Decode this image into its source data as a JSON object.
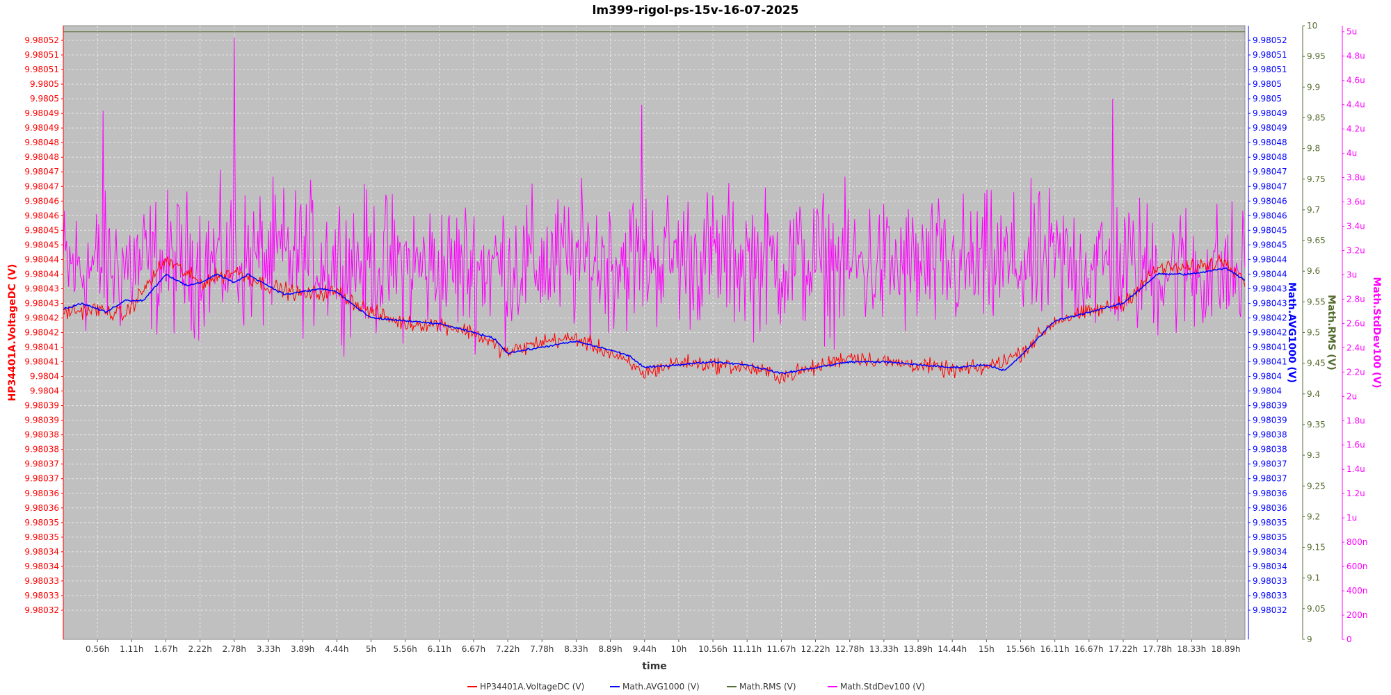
{
  "chart_data": {
    "type": "line",
    "title": "lm399-rigol-ps-15v-16-07-2025",
    "xlabel": "time",
    "x_range_hours": [
      0,
      19.2
    ],
    "x_tick_labels": [
      "0.56h",
      "1.11h",
      "1.67h",
      "2.22h",
      "2.78h",
      "3.33h",
      "3.89h",
      "4.44h",
      "5h",
      "5.56h",
      "6.11h",
      "6.67h",
      "7.22h",
      "7.78h",
      "8.33h",
      "8.89h",
      "9.44h",
      "10h",
      "10.56h",
      "11.11h",
      "11.67h",
      "12.22h",
      "12.78h",
      "13.33h",
      "13.89h",
      "14.44h",
      "15h",
      "15.56h",
      "16.11h",
      "16.67h",
      "17.22h",
      "17.78h",
      "18.33h",
      "18.89h"
    ],
    "grid": true,
    "legend_position": "bottom",
    "axes": {
      "left": {
        "label": "HP34401A.VoltageDC (V)",
        "color": "#ff0000",
        "range": [
          9.980315,
          9.980525
        ],
        "tick_labels": [
          "9.98052",
          "9.98051",
          "9.98051",
          "9.9805",
          "9.9805",
          "9.98049",
          "9.98049",
          "9.98048",
          "9.98048",
          "9.98047",
          "9.98047",
          "9.98046",
          "9.98046",
          "9.98045",
          "9.98045",
          "9.98044",
          "9.98044",
          "9.98043",
          "9.98043",
          "9.98042",
          "9.98042",
          "9.98041",
          "9.98041",
          "9.9804",
          "9.9804",
          "9.98039",
          "9.98039",
          "9.98038",
          "9.98038",
          "9.98037",
          "9.98037",
          "9.98036",
          "9.98036",
          "9.98035",
          "9.98035",
          "9.98034",
          "9.98034",
          "9.98033",
          "9.98033",
          "9.98032"
        ]
      },
      "right1": {
        "label": "Math.AVG1000 (V)",
        "color": "#0000ff",
        "range": [
          9.980315,
          9.980525
        ],
        "tick_labels": [
          "9.98052",
          "9.98051",
          "9.98051",
          "9.9805",
          "9.9805",
          "9.98049",
          "9.98049",
          "9.98048",
          "9.98048",
          "9.98047",
          "9.98047",
          "9.98046",
          "9.98046",
          "9.98045",
          "9.98045",
          "9.98044",
          "9.98044",
          "9.98043",
          "9.98043",
          "9.98042",
          "9.98042",
          "9.98041",
          "9.98041",
          "9.9804",
          "9.9804",
          "9.98039",
          "9.98039",
          "9.98038",
          "9.98038",
          "9.98037",
          "9.98037",
          "9.98036",
          "9.98036",
          "9.98035",
          "9.98035",
          "9.98034",
          "9.98034",
          "9.98033",
          "9.98033",
          "9.98032"
        ]
      },
      "right2": {
        "label": "Math.RMS (V)",
        "color": "#556b2f",
        "range": [
          9,
          10
        ],
        "tick_labels": [
          "10",
          "9.95",
          "9.9",
          "9.85",
          "9.8",
          "9.75",
          "9.7",
          "9.65",
          "9.6",
          "9.55",
          "9.5",
          "9.45",
          "9.4",
          "9.35",
          "9.3",
          "9.25",
          "9.2",
          "9.15",
          "9.1",
          "9.05",
          "9"
        ]
      },
      "right3": {
        "label": "Math.StdDev100 (V)",
        "color": "#ff00ff",
        "range": [
          0,
          5.05e-06
        ],
        "tick_labels": [
          "5u",
          "4.8u",
          "4.6u",
          "4.4u",
          "4.2u",
          "4u",
          "3.8u",
          "3.6u",
          "3.4u",
          "3.2u",
          "3u",
          "2.8u",
          "2.6u",
          "2.4u",
          "2.2u",
          "2u",
          "1.8u",
          "1.6u",
          "1.4u",
          "1.2u",
          "1u",
          "800n",
          "600n",
          "400n",
          "200n",
          "0"
        ]
      }
    },
    "series": [
      {
        "name": "HP34401A.VoltageDC (V)",
        "axis": "left",
        "color": "#ff0000",
        "x": [
          0,
          0.5,
          1,
          1.67,
          2.22,
          2.78,
          3.33,
          3.89,
          4.44,
          5,
          5.56,
          6.11,
          6.67,
          7.22,
          7.78,
          8.33,
          8.89,
          9.44,
          10,
          10.56,
          11.11,
          11.67,
          12.22,
          12.78,
          13.33,
          13.89,
          14.44,
          15,
          15.56,
          16.11,
          16.67,
          17.22,
          17.78,
          18.33,
          18.89,
          19.2
        ],
        "y": [
          9.980427,
          9.980428,
          9.980426,
          9.980445,
          9.980437,
          9.980441,
          9.980436,
          9.980433,
          9.980434,
          9.980427,
          9.980423,
          9.980423,
          9.98042,
          9.980413,
          9.980417,
          9.980418,
          9.980413,
          9.980406,
          9.98041,
          9.980409,
          9.980408,
          9.980405,
          9.980408,
          9.980412,
          9.98041,
          9.980409,
          9.980407,
          9.980408,
          9.980413,
          9.980424,
          9.980427,
          9.98043,
          9.980442,
          9.980442,
          9.980445,
          9.980438
        ],
        "noise": 4e-06
      },
      {
        "name": "Math.AVG1000 (V)",
        "axis": "right1",
        "color": "#0000ff",
        "x": [
          0,
          0.3,
          0.7,
          1.0,
          1.3,
          1.67,
          2.0,
          2.22,
          2.5,
          2.78,
          3.0,
          3.33,
          3.6,
          3.89,
          4.2,
          4.44,
          4.8,
          5.0,
          5.56,
          6.11,
          6.67,
          7.0,
          7.22,
          7.78,
          8.33,
          8.89,
          9.2,
          9.44,
          10,
          10.56,
          11.11,
          11.67,
          12.22,
          12.78,
          13.33,
          13.89,
          14.44,
          15,
          15.3,
          15.56,
          16.11,
          16.67,
          17.22,
          17.78,
          18.33,
          18.89,
          19.2
        ],
        "y": [
          9.980428,
          9.98043,
          9.980427,
          9.980431,
          9.980431,
          9.98044,
          9.980436,
          9.980437,
          9.98044,
          9.980437,
          9.98044,
          9.980436,
          9.980433,
          9.980434,
          9.980435,
          9.980434,
          9.980428,
          9.980425,
          9.980424,
          9.980423,
          9.98042,
          9.980418,
          9.980413,
          9.980415,
          9.980417,
          9.980414,
          9.980412,
          9.980408,
          9.980409,
          9.98041,
          9.980409,
          9.980406,
          9.980408,
          9.98041,
          9.98041,
          9.980409,
          9.980408,
          9.980409,
          9.980407,
          9.980412,
          9.980424,
          9.980427,
          9.98043,
          9.98044,
          9.98044,
          9.980442,
          9.980438
        ],
        "noise": 5e-07
      },
      {
        "name": "Math.RMS (V)",
        "axis": "right2",
        "color": "#556b2f",
        "x": [
          0,
          19.2
        ],
        "y": [
          9.99,
          9.99
        ],
        "noise": 0
      },
      {
        "name": "Math.StdDev100 (V)",
        "axis": "right3",
        "color": "#ff00ff",
        "x": [
          0,
          2,
          4,
          6,
          8,
          10,
          12,
          14,
          16,
          18,
          19.2
        ],
        "y": [
          3.05e-06,
          3.1e-06,
          3.15e-06,
          3.05e-06,
          3.1e-06,
          3.15e-06,
          3.1e-06,
          3.05e-06,
          3.1e-06,
          3.05e-06,
          3e-06
        ],
        "noise": 4.2e-07,
        "spikes": [
          {
            "x": 2.78,
            "y": 4.95e-06
          },
          {
            "x": 0.65,
            "y": 4.35e-06
          },
          {
            "x": 9.4,
            "y": 4.4e-06
          },
          {
            "x": 17.05,
            "y": 4.45e-06
          }
        ]
      }
    ]
  }
}
